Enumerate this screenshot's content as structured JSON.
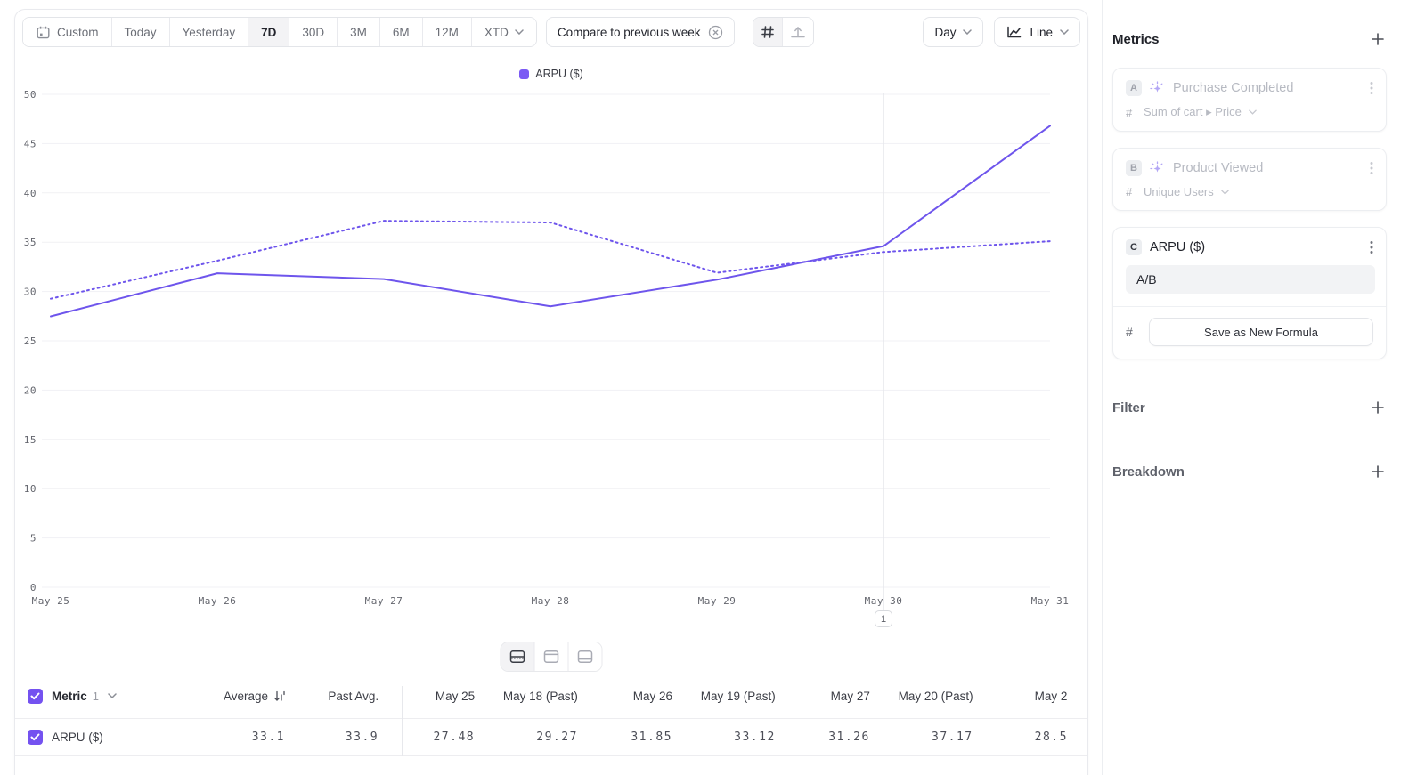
{
  "toolbar": {
    "date_ranges": [
      "Custom",
      "Today",
      "Yesterday",
      "7D",
      "30D",
      "3M",
      "6M",
      "12M",
      "XTD"
    ],
    "selected_range": "7D",
    "compare_chip_label": "Compare to previous week",
    "interval_label": "Day",
    "chart_type_label": "Line"
  },
  "legend": {
    "label": "ARPU ($)"
  },
  "chart_data": {
    "type": "line",
    "categories": [
      "May 25",
      "May 26",
      "May 27",
      "May 28",
      "May 29",
      "May 30",
      "May 31"
    ],
    "series": [
      {
        "name": "ARPU ($)",
        "style": "solid",
        "values": [
          27.48,
          31.85,
          31.26,
          28.5,
          31.2,
          34.6,
          46.8
        ]
      },
      {
        "name": "ARPU ($) previous week",
        "style": "dotted",
        "values": [
          29.27,
          33.12,
          37.17,
          37.0,
          31.9,
          34.0,
          35.1
        ]
      }
    ],
    "ylim": [
      0,
      50
    ],
    "ytick_step": 5,
    "grid": "horizontal",
    "legend_position": "top",
    "vertical_marker_at": "May 30",
    "color": "#6e55ec"
  },
  "chart_extras": {
    "annotation_badge": "1"
  },
  "colors": {
    "accent": "#7452f0",
    "legend_swatch": "#7b5af4",
    "line": "#6e55ec"
  },
  "icons": {
    "calendar": "▦",
    "chevron-down": "⌄",
    "close-circle": "⊗",
    "grid": "#",
    "annotation-marker": "↟",
    "line-chart": "📈",
    "plus": "+",
    "kebab": "⋮",
    "sparkle": "✦",
    "check": "✓",
    "sort": "↓",
    "breadcrumb-arrow": "▸",
    "layout-split": "▤",
    "layout-top": "⬒",
    "layout-bottom": "⬓"
  },
  "sidebar": {
    "title": "Metrics",
    "metrics": [
      {
        "letter": "A",
        "name": "Purchase Completed",
        "measure_prefix": "#",
        "measure": "Sum of cart ▸ Price",
        "state": "dimmed"
      },
      {
        "letter": "B",
        "name": "Product Viewed",
        "measure_prefix": "#",
        "measure": "Unique Users",
        "state": "dimmed"
      },
      {
        "letter": "C",
        "name": "ARPU ($)",
        "formula": "A/B",
        "measure_prefix": "#",
        "save_button_label": "Save as New Formula",
        "state": "active"
      }
    ],
    "sections": [
      {
        "label": "Filter"
      },
      {
        "label": "Breakdown"
      }
    ]
  },
  "table": {
    "metric_label": "Metric",
    "metric_number": "1",
    "columns": [
      "Average",
      "Past Avg.",
      "May 25",
      "May 18 (Past)",
      "May 26",
      "May 19 (Past)",
      "May 27",
      "May 20 (Past)",
      "May 2"
    ],
    "rows": [
      {
        "label": "ARPU ($)",
        "values": [
          "33.1",
          "33.9",
          "27.48",
          "29.27",
          "31.85",
          "33.12",
          "31.26",
          "37.17",
          "28.5"
        ]
      }
    ]
  }
}
